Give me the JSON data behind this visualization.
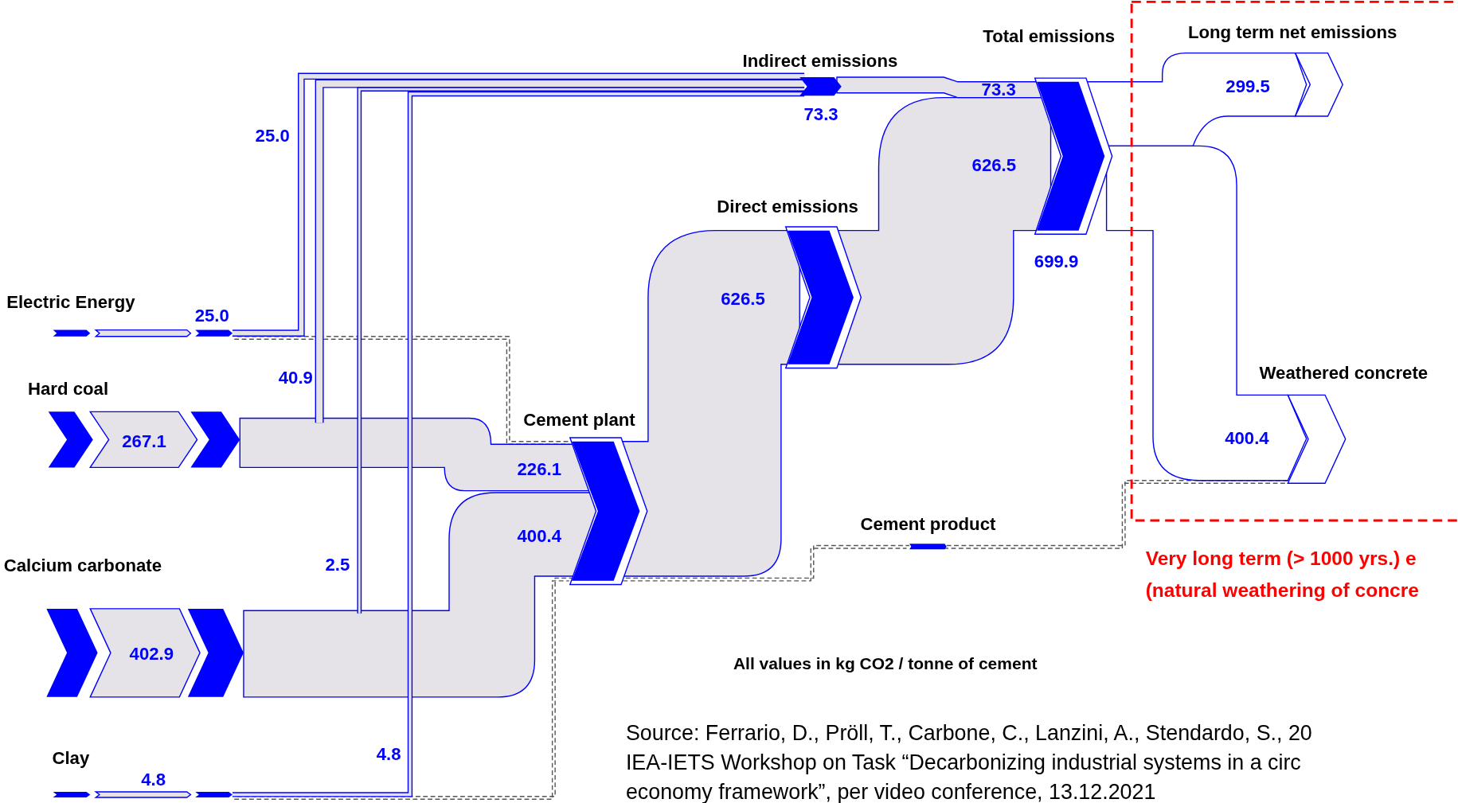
{
  "chart_data": {
    "type": "other",
    "categories": [
      "Electric Energy",
      "Hard coal",
      "Calcium carbonate",
      "Clay",
      "Cement plant",
      "Indirect emissions",
      "Direct emissions",
      "Total emissions",
      "Cement product",
      "Long term net emissions",
      "Weathered concrete"
    ],
    "color": "#0000ff",
    "values": [
      25.0,
      267.1,
      402.9,
      4.8,
      null,
      73.3,
      null,
      699.9,
      null,
      299.5,
      400.4
    ],
    "value_labels": [
      "25.0",
      "267.1",
      "402.9",
      "4.8",
      null,
      "73.3",
      null,
      "699.9",
      null,
      "299.5",
      "400.4"
    ],
    "annotations": [
      "25.0",
      "40.9",
      "2.5",
      "4.8",
      "226.1",
      "400.4",
      "626.5",
      "626.5",
      "73.3",
      "All values in kg CO2 / tonne of cement",
      "Very long term (> 1000 yrs.) e",
      "(natural weathering of concre",
      "Source: Ferrario, D., Pröll, T., Carbone, C., Lanzini, A., Stendardo, S., 20",
      "IEA-IETS Workshop on Task “Decarbonizing industrial systems in a circ",
      "economy framework”, per video conference, 13.12.2021"
    ]
  }
}
